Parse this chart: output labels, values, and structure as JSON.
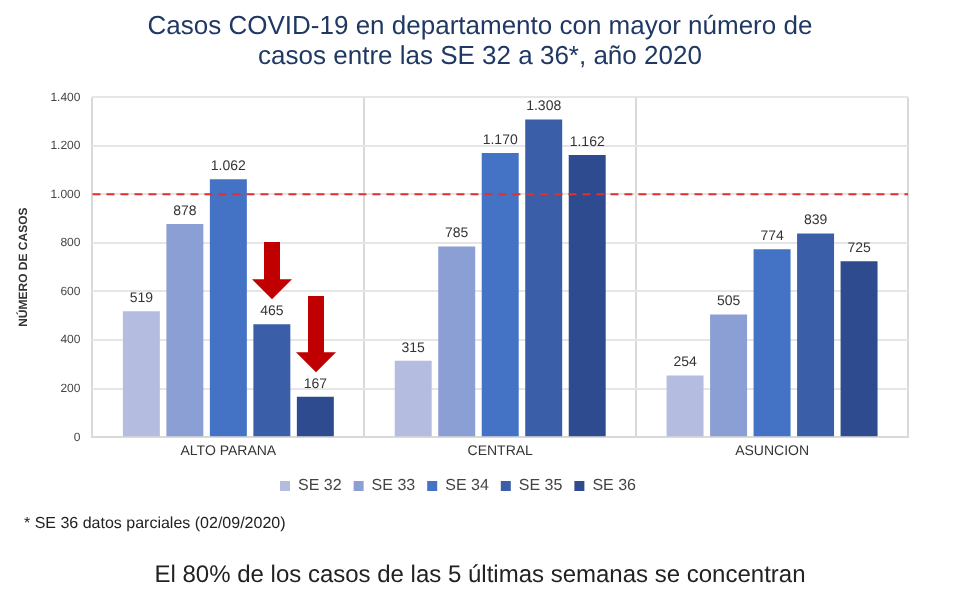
{
  "chart_data": {
    "type": "bar",
    "title": "Casos COVID-19 en departamento con mayor número de casos entre las SE 32 a 36*, año 2020",
    "ylabel": "NÚMERO DE CASOS",
    "categories": [
      "ALTO PARANA",
      "CENTRAL",
      "ASUNCION"
    ],
    "series": [
      {
        "name": "SE 32",
        "color": "#b4bde0",
        "values": [
          519,
          315,
          254
        ],
        "value_labels": [
          "519",
          "315",
          "254"
        ]
      },
      {
        "name": "SE 33",
        "color": "#8c9fd4",
        "values": [
          878,
          785,
          505
        ],
        "value_labels": [
          "878",
          "785",
          "505"
        ]
      },
      {
        "name": "SE 34",
        "color": "#4472c4",
        "values": [
          1062,
          1170,
          774
        ],
        "value_labels": [
          "1.062",
          "1.170",
          "774"
        ]
      },
      {
        "name": "SE 35",
        "color": "#3a5fa8",
        "values": [
          465,
          1308,
          839
        ],
        "value_labels": [
          "465",
          "1.308",
          "839"
        ]
      },
      {
        "name": "SE 36",
        "color": "#2f4b8f",
        "values": [
          167,
          1162,
          725
        ],
        "value_labels": [
          "167",
          "1.162",
          "725"
        ]
      }
    ],
    "ylim": [
      0,
      1400
    ],
    "yticks": [
      0,
      200,
      400,
      600,
      800,
      {
        "value": 1000,
        "label": "1.000"
      },
      {
        "value": 1200,
        "label": "1.200"
      },
      {
        "value": 1400,
        "label": "1.400"
      }
    ],
    "ref_lines": [
      {
        "axis": "y",
        "value": 1000,
        "color": "#e03030",
        "line_style": "dashed"
      }
    ],
    "grid": true,
    "legend": "bottom",
    "annotations": [
      "* SE 36 datos parciales (02/09/2020)",
      "El 80% de los casos de las 5 últimas semanas se concentran"
    ]
  }
}
